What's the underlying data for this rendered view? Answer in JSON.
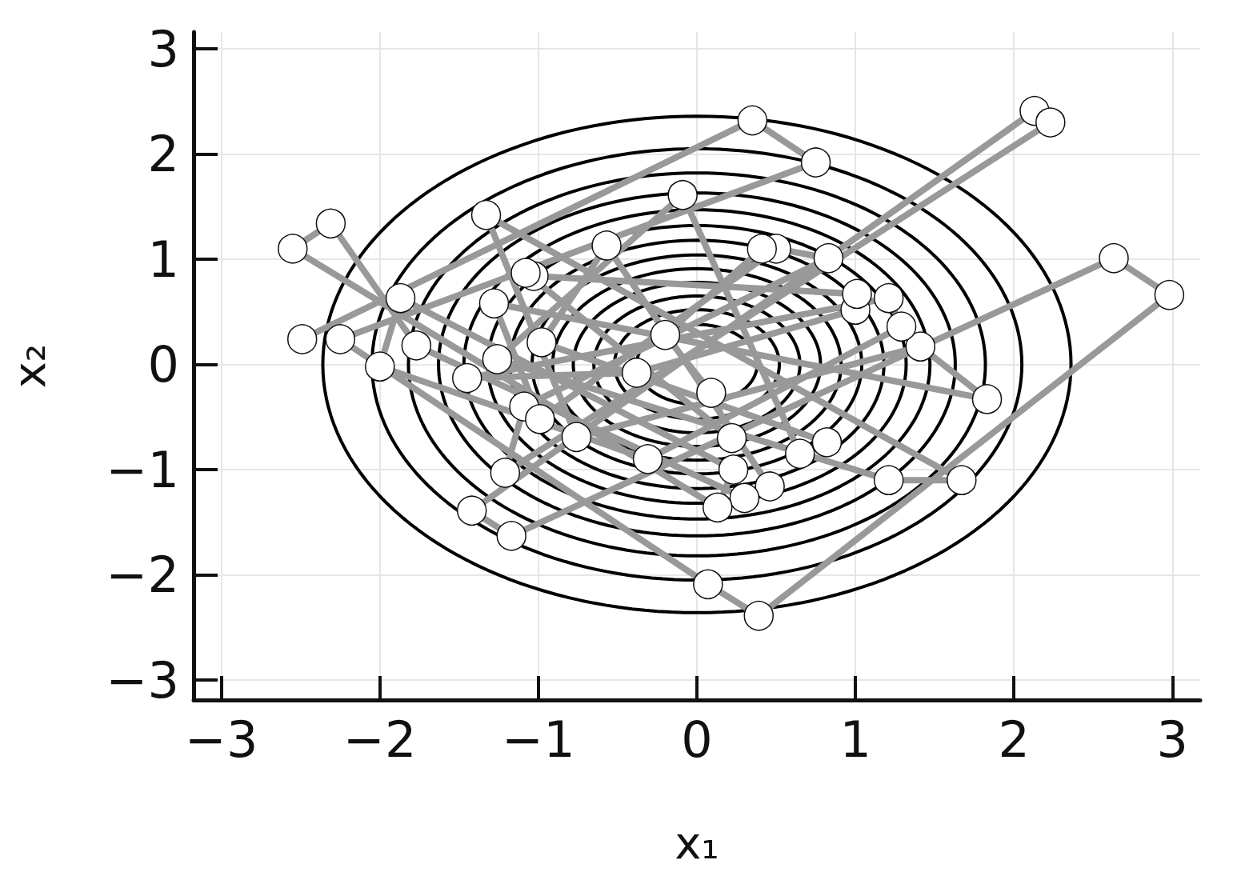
{
  "chart_data": {
    "type": "line",
    "x_label": "x₁",
    "y_label": "x₂",
    "xlim": [
      -3.175,
      3.175
    ],
    "ylim": [
      -3.19,
      3.16
    ],
    "xticks": [
      {
        "value": -3,
        "label": "−3"
      },
      {
        "value": -2,
        "label": "−2"
      },
      {
        "value": -1,
        "label": "−1"
      },
      0,
      1,
      2,
      3
    ],
    "yticks": [
      {
        "value": -3,
        "label": "−3"
      },
      {
        "value": -2,
        "label": "−2"
      },
      {
        "value": -1,
        "label": "−1"
      },
      0,
      1,
      2,
      3
    ],
    "grid": true,
    "contours": {
      "color": "#000000",
      "line_style": "solid",
      "center": [
        0,
        0
      ],
      "radii": [
        2.36,
        2.05,
        1.82,
        1.63,
        1.47,
        1.32,
        1.18,
        1.04,
        0.91,
        0.78,
        0.65,
        0.52,
        0.38
      ]
    },
    "series": [
      {
        "color": "#999999",
        "marker": "circle",
        "line_style": "solid",
        "x": [
          -2.49,
          0.35,
          0.75,
          -2.25,
          0.07,
          0.39,
          2.98,
          2.63,
          -1.17,
          -1.42,
          2.13,
          2.23,
          -1.21,
          -1.09,
          0.83,
          0.5,
          -0.99,
          -1.28,
          1.83,
          1.41,
          -0.76,
          -1.33,
          1.67,
          1.21,
          -1.26,
          -0.09,
          0.65,
          0.82,
          -0.98,
          -0.57,
          0.46,
          0.3,
          -1.77,
          -2.31,
          -2.55,
          0.13,
          0.23,
          -1.87,
          -2.0,
          -0.31,
          1.29,
          1.21,
          -1.45,
          -0.38,
          1.0,
          1.01,
          -1.03,
          -1.08,
          0.22,
          0.09,
          -0.2,
          0.41
        ],
        "values": [
          0.24,
          2.32,
          1.92,
          0.24,
          -2.09,
          -2.39,
          0.66,
          1.01,
          -1.63,
          -1.39,
          2.41,
          2.3,
          -1.03,
          -0.4,
          1.01,
          1.1,
          -0.52,
          0.58,
          -0.33,
          0.17,
          -0.69,
          1.42,
          -1.1,
          -1.1,
          0.05,
          1.61,
          -0.85,
          -0.74,
          0.21,
          1.13,
          -1.16,
          -1.27,
          0.18,
          1.34,
          1.1,
          -1.36,
          -1.0,
          0.63,
          -0.02,
          -0.9,
          0.36,
          0.63,
          -0.13,
          -0.08,
          0.52,
          0.67,
          0.84,
          0.87,
          -0.7,
          -0.27,
          0.28,
          1.1
        ]
      }
    ]
  }
}
